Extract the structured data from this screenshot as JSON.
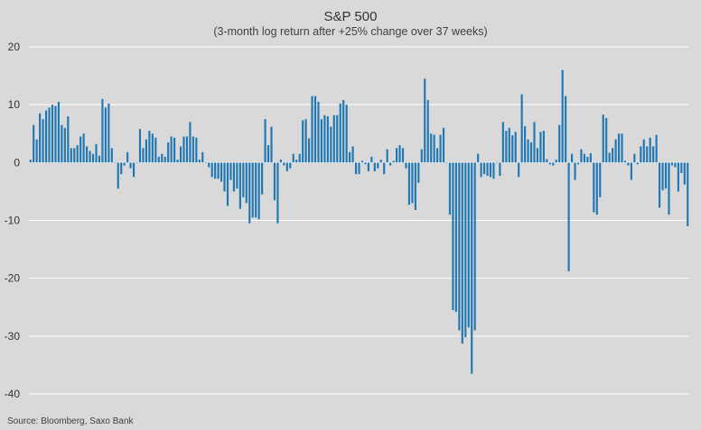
{
  "chart_data": {
    "type": "bar",
    "title": "S&P 500",
    "subtitle": "(3-month log return after +25% change over 37 weeks)",
    "xlabel": "",
    "ylabel": "",
    "ylim": [
      -40,
      20
    ],
    "yticks": [
      20,
      10,
      0,
      -10,
      -20,
      -30,
      -40
    ],
    "grid": true,
    "source": "Source: Bloomberg, Saxo Bank",
    "colors": {
      "bar": "#1f77b4",
      "grid": "#ffffff",
      "background": "#d9d9d9"
    },
    "values": [
      0.5,
      6.5,
      4,
      8.5,
      7.5,
      9,
      9.5,
      10,
      9.8,
      10.5,
      6.5,
      6,
      8,
      2.5,
      2.5,
      3,
      4.5,
      5,
      2.8,
      2,
      1.5,
      3.2,
      1.2,
      11,
      9.5,
      10.2,
      2.5,
      0,
      -4.5,
      -2,
      -0.5,
      1.8,
      -1,
      -2.5,
      0,
      5.8,
      2.5,
      4,
      5.5,
      5,
      4.3,
      1,
      1.5,
      1,
      3.5,
      4.5,
      4.3,
      0.5,
      2.8,
      4.5,
      4.5,
      7,
      4.5,
      4.3,
      0.5,
      1.8,
      0,
      -0.8,
      -2.5,
      -2.8,
      -2.8,
      -3.3,
      -5,
      -7.5,
      -3,
      -5,
      -4.5,
      -8,
      -6,
      -7,
      -10.5,
      -9.5,
      -9.5,
      -9.8,
      -5.5,
      7.5,
      3,
      6.2,
      -6.5,
      -10.5,
      0.5,
      -0.5,
      -1.5,
      -1,
      1.5,
      0.5,
      1.5,
      7.3,
      7.5,
      4.2,
      11.5,
      11.5,
      10.5,
      7.5,
      8.2,
      8,
      6.2,
      8.2,
      8.2,
      10.2,
      10.8,
      10,
      1.8,
      2.8,
      -2,
      -2,
      0.3,
      -0.3,
      -1.5,
      1,
      -1.5,
      -1,
      0.5,
      -2,
      2.3,
      -0.5,
      0.3,
      2.5,
      3,
      2.5,
      -1,
      -7.3,
      -7,
      -8.2,
      -3.5,
      2.3,
      14.5,
      10.8,
      5,
      4.8,
      2.5,
      4.8,
      6,
      0,
      -9,
      -25.5,
      -25.8,
      -29,
      -31.3,
      -30.2,
      -28.5,
      -36.5,
      -29,
      1.5,
      -2.5,
      -2,
      -2.3,
      -2.5,
      -2.8,
      0,
      -2.3,
      7,
      5.5,
      6,
      4.7,
      5.3,
      -2.5,
      11.8,
      6.3,
      4,
      3.5,
      7,
      2.5,
      5.3,
      5.5,
      0.6,
      -0.3,
      -0.5,
      0.5,
      6.5,
      16,
      11.5,
      -18.8,
      1.5,
      -3,
      -0.3,
      2.3,
      1.5,
      1,
      1.6,
      -8.6,
      -9,
      -6,
      8.3,
      7.7,
      1.7,
      2.5,
      4,
      5,
      5,
      0.3,
      -0.5,
      -3,
      1.5,
      -0.3,
      2.8,
      4,
      2.8,
      4.3,
      2.8,
      4.8,
      -7.8,
      -4.8,
      -4.5,
      -9,
      -0.5,
      -0.8,
      -5,
      -1.8,
      -3.8,
      -11
    ]
  }
}
